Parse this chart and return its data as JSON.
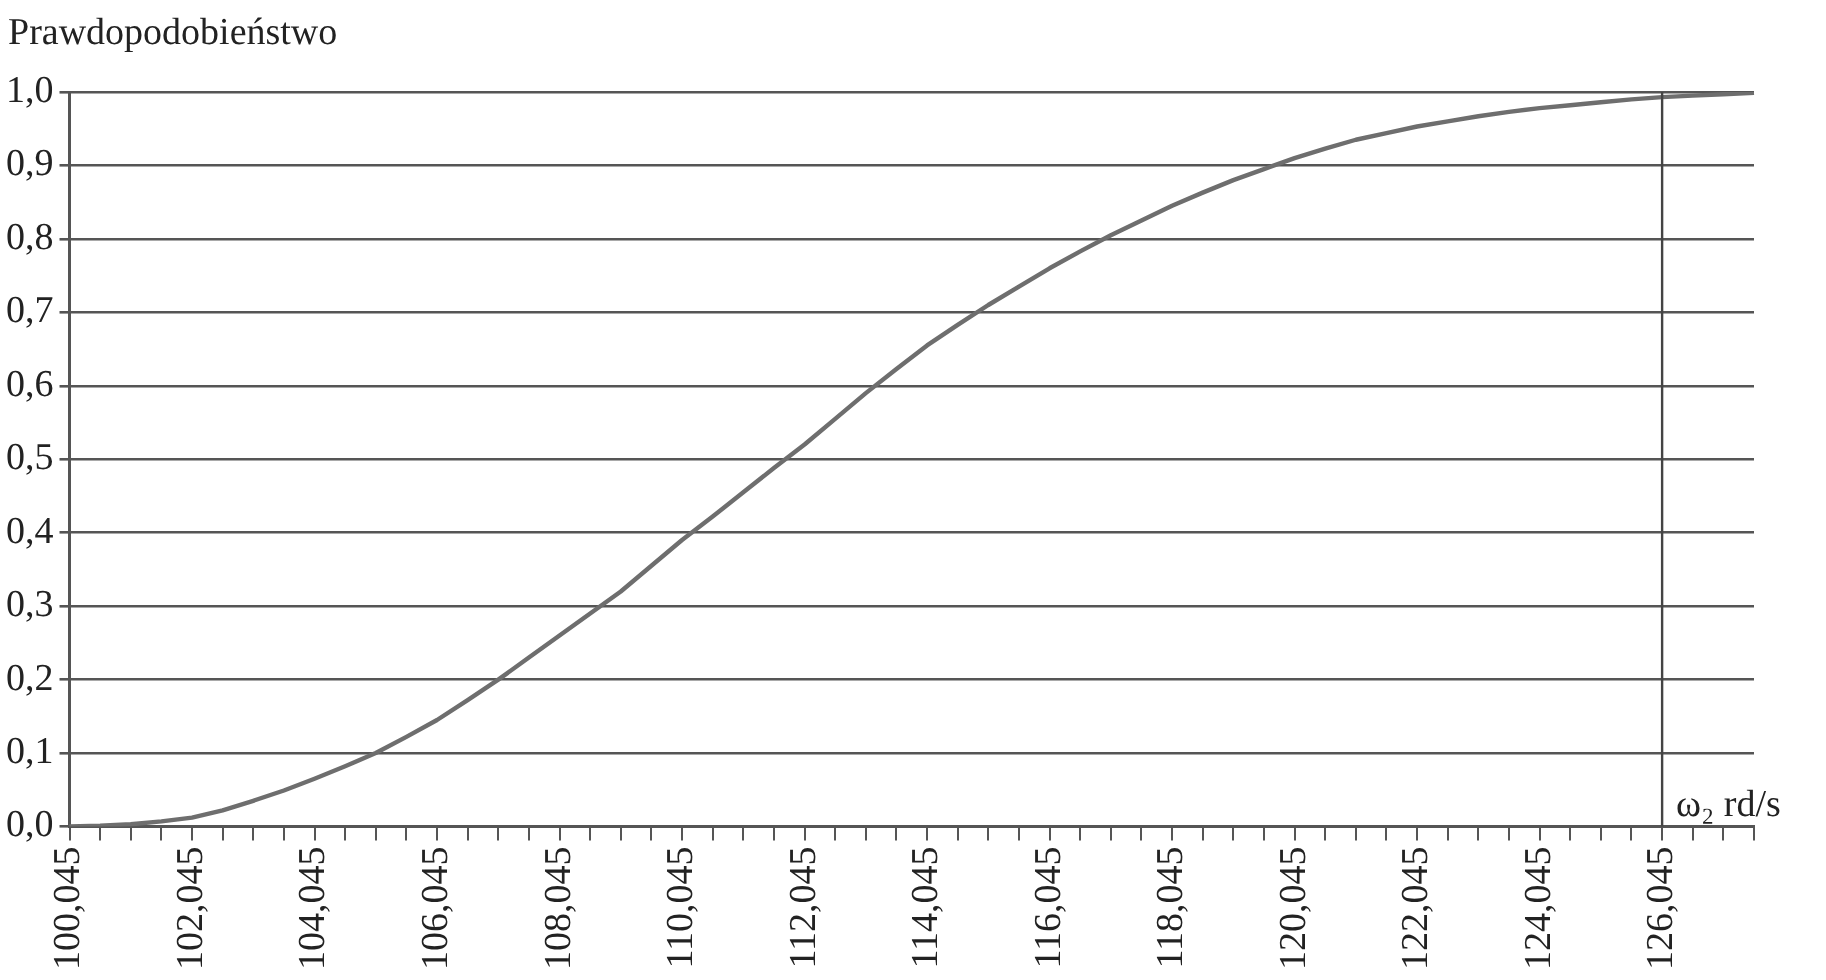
{
  "chart_data": {
    "type": "line",
    "xlabel": "ω₂ rd/s",
    "ylabel": "Prawdopodobieństwo",
    "categories": [
      "100,045",
      null,
      null,
      null,
      "102,045",
      null,
      null,
      null,
      "104,045",
      null,
      null,
      null,
      "106,045",
      null,
      null,
      null,
      "108,045",
      null,
      null,
      null,
      "110,045",
      null,
      null,
      null,
      "112,045",
      null,
      null,
      null,
      "114,045",
      null,
      null,
      null,
      "116,045",
      null,
      null,
      null,
      "118,045",
      null,
      null,
      null,
      "120,045",
      null,
      null,
      null,
      "122,045",
      null,
      null,
      null,
      "124,045",
      null,
      null,
      null,
      "126,045",
      null,
      null,
      null
    ],
    "series": [
      {
        "color": "#6e6e6e",
        "values": [
          0,
          0.001,
          0.003,
          0.007,
          0.012,
          0.022,
          0.035,
          0.049,
          0.065,
          0.082,
          0.1,
          0.122,
          0.145,
          0.172,
          0.2,
          0.23,
          0.26,
          0.29,
          0.32,
          0.355,
          0.39,
          0.422,
          0.455,
          0.488,
          0.52,
          0.555,
          0.59,
          0.623,
          0.655,
          0.683,
          0.71,
          0.735,
          0.76,
          0.783,
          0.805,
          0.825,
          0.845,
          0.863,
          0.88,
          0.895,
          0.91,
          0.923,
          0.935,
          0.944,
          0.953,
          0.96,
          0.967,
          0.973,
          0.978,
          0.982,
          0.986,
          0.99,
          0.993,
          0.995,
          0.997,
          0.999
        ]
      }
    ],
    "ylim": [
      0,
      1
    ],
    "yticks": [
      {
        "value": 0,
        "label": "0,0"
      },
      {
        "value": 0.1,
        "label": "0,1"
      },
      {
        "value": 0.2,
        "label": "0,2"
      },
      {
        "value": 0.3,
        "label": "0,3"
      },
      {
        "value": 0.4,
        "label": "0,4"
      },
      {
        "value": 0.5,
        "label": "0,5"
      },
      {
        "value": 0.6,
        "label": "0,6"
      },
      {
        "value": 0.7,
        "label": "0,7"
      },
      {
        "value": 0.8,
        "label": "0,8"
      },
      {
        "value": 0.9,
        "label": "0,9"
      },
      {
        "value": 1,
        "label": "1,0"
      }
    ],
    "grid": "y",
    "legend": false,
    "marker": "none",
    "line_style": "solid",
    "ref_lines": [
      {
        "axis": "x",
        "value": "126,045",
        "color": "#444444"
      }
    ]
  }
}
